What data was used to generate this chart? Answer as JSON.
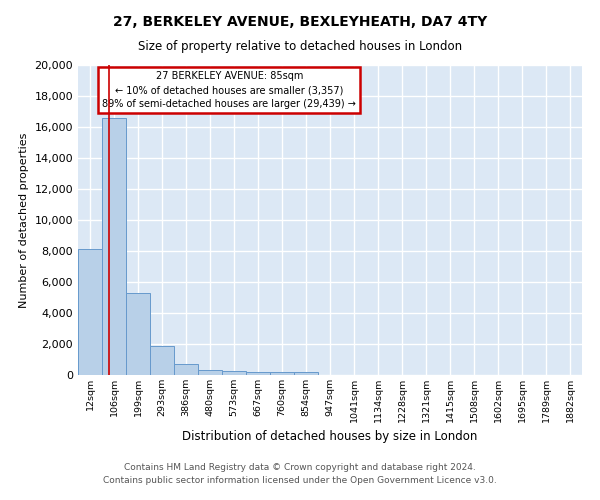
{
  "title1": "27, BERKELEY AVENUE, BEXLEYHEATH, DA7 4TY",
  "title2": "Size of property relative to detached houses in London",
  "xlabel": "Distribution of detached houses by size in London",
  "ylabel": "Number of detached properties",
  "bar_color": "#b8d0e8",
  "bar_edge_color": "#6699cc",
  "annotation_line1": "27 BERKELEY AVENUE: 85sqm",
  "annotation_line2": "← 10% of detached houses are smaller (3,357)",
  "annotation_line3": "89% of semi-detached houses are larger (29,439) →",
  "annotation_box_facecolor": "#ffffff",
  "annotation_box_edgecolor": "#cc0000",
  "categories": [
    "12sqm",
    "106sqm",
    "199sqm",
    "293sqm",
    "386sqm",
    "480sqm",
    "573sqm",
    "667sqm",
    "760sqm",
    "854sqm",
    "947sqm",
    "1041sqm",
    "1134sqm",
    "1228sqm",
    "1321sqm",
    "1415sqm",
    "1508sqm",
    "1602sqm",
    "1695sqm",
    "1789sqm",
    "1882sqm"
  ],
  "bar_heights": [
    8100,
    16600,
    5300,
    1850,
    700,
    350,
    270,
    220,
    190,
    170,
    0,
    0,
    0,
    0,
    0,
    0,
    0,
    0,
    0,
    0,
    0
  ],
  "ylim": [
    0,
    20000
  ],
  "yticks": [
    0,
    2000,
    4000,
    6000,
    8000,
    10000,
    12000,
    14000,
    16000,
    18000,
    20000
  ],
  "plot_bg_color": "#dce8f5",
  "fig_bg_color": "#ffffff",
  "grid_color": "#ffffff",
  "vline_color": "#cc0000",
  "vline_x": 0.78,
  "footer1": "Contains HM Land Registry data © Crown copyright and database right 2024.",
  "footer2": "Contains public sector information licensed under the Open Government Licence v3.0."
}
